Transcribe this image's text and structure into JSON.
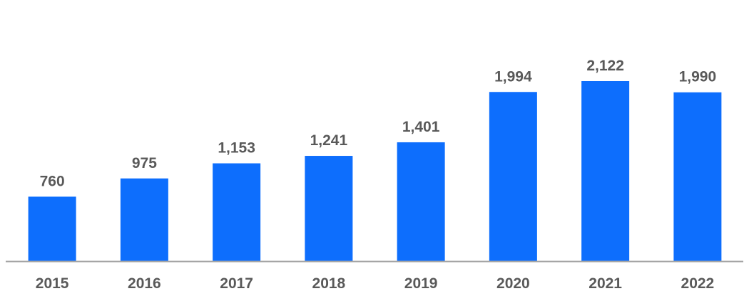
{
  "chart_data": {
    "type": "bar",
    "categories": [
      "2015",
      "2016",
      "2017",
      "2018",
      "2019",
      "2020",
      "2021",
      "2022"
    ],
    "values": [
      760,
      975,
      1153,
      1241,
      1401,
      1994,
      2122,
      1990
    ],
    "data_labels": [
      "760",
      "975",
      "1,153",
      "1,241",
      "1,401",
      "1,994",
      "2,122",
      "1,990"
    ],
    "title": "",
    "xlabel": "",
    "ylabel": "",
    "ylim": [
      0,
      2600
    ],
    "grid": false,
    "legend": "none",
    "bar_color": "#0D6EFD",
    "axis_color": "#A6A6A6",
    "label_color": "#595959"
  }
}
